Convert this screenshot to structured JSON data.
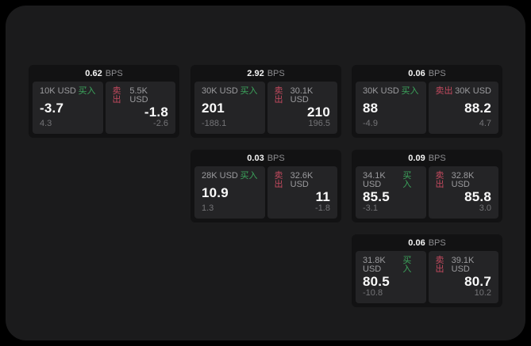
{
  "labels": {
    "bps_unit": "BPS",
    "buy": "买入",
    "sell": "卖出"
  },
  "colors": {
    "page_background": "#000000",
    "panel_background": "#1b1b1c",
    "card_background": "#121213",
    "tile_background": "#242426",
    "buy_green": "#3CA55C",
    "sell_red": "#C44A5F"
  },
  "cards": [
    {
      "bps": "0.62",
      "buy": {
        "amount": "10K USD",
        "value": "-3.7",
        "delta": "4.3"
      },
      "sell": {
        "amount": "5.5K USD",
        "value": "-1.8",
        "delta": "-2.6"
      }
    },
    {
      "bps": "2.92",
      "buy": {
        "amount": "30K USD",
        "value": "201",
        "delta": "-188.1"
      },
      "sell": {
        "amount": "30.1K USD",
        "value": "210",
        "delta": "196.5"
      }
    },
    {
      "bps": "0.06",
      "buy": {
        "amount": "30K USD",
        "value": "88",
        "delta": "-4.9"
      },
      "sell": {
        "amount": "30K USD",
        "value": "88.2",
        "delta": "4.7"
      }
    },
    {
      "bps": "0.03",
      "buy": {
        "amount": "28K USD",
        "value": "10.9",
        "delta": "1.3"
      },
      "sell": {
        "amount": "32.6K USD",
        "value": "11",
        "delta": "-1.8"
      }
    },
    {
      "bps": "0.09",
      "buy": {
        "amount": "34.1K USD",
        "value": "85.5",
        "delta": "-3.1"
      },
      "sell": {
        "amount": "32.8K USD",
        "value": "85.8",
        "delta": "3.0"
      }
    },
    {
      "bps": "0.06",
      "buy": {
        "amount": "31.8K USD",
        "value": "80.5",
        "delta": "-10.8"
      },
      "sell": {
        "amount": "39.1K USD",
        "value": "80.7",
        "delta": "10.2"
      }
    }
  ]
}
